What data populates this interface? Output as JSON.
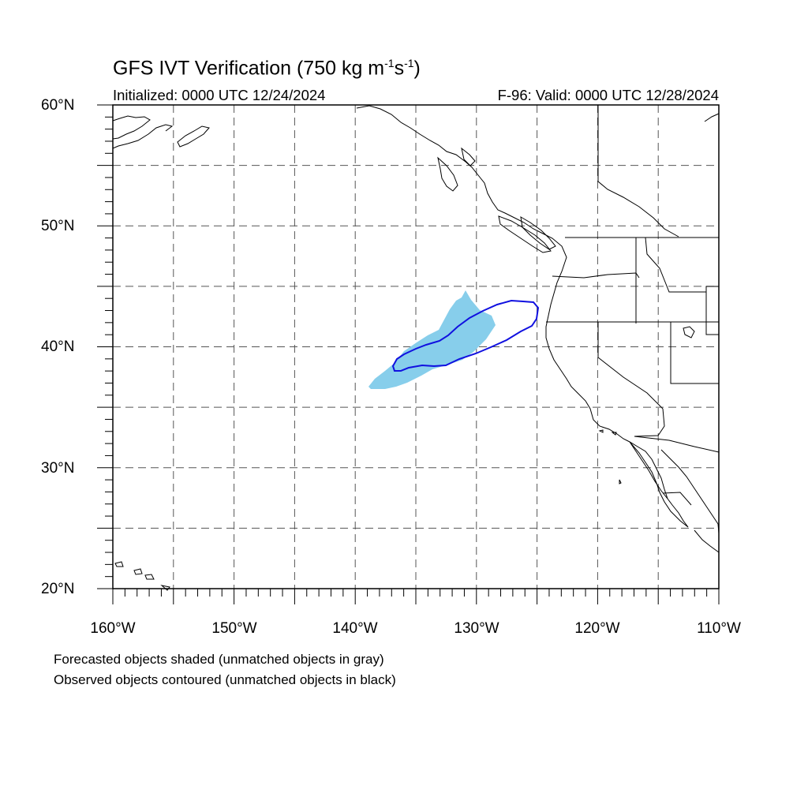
{
  "title": {
    "prefix": "GFS IVT Verification (750 kg m",
    "exp1": "-1",
    "middle": "s",
    "exp2": "-1",
    "suffix": ")"
  },
  "initialized": "Initialized: 0000 UTC 12/24/2024",
  "valid": "F-96: Valid: 0000 UTC 12/28/2024",
  "map": {
    "projection": "cylindrical equidistant",
    "lon_range": [
      -160,
      -110
    ],
    "lat_range": [
      20,
      60
    ],
    "gridlines": "dashed",
    "lat_labels": [
      "60°N",
      "50°N",
      "40°N",
      "30°N",
      "20°N"
    ],
    "lon_labels": [
      "160°W",
      "150°W",
      "140°W",
      "130°W",
      "120°W",
      "110°W"
    ],
    "forecast_object": {
      "type": "shaded",
      "color": "#87CEEB",
      "approx_extent": {
        "lon": [
          -139,
          -127
        ],
        "lat": [
          36.6,
          44.7
        ]
      }
    },
    "observed_object": {
      "type": "contour",
      "color": "#1010E0",
      "approx_extent": {
        "lon": [
          -137,
          -125
        ],
        "lat": [
          38.3,
          43.8
        ]
      }
    },
    "coastline_color": "#000000"
  },
  "footnotes": [
    "Forecasted objects shaded (unmatched objects in gray)",
    "Observed objects contoured (unmatched objects in black)"
  ]
}
